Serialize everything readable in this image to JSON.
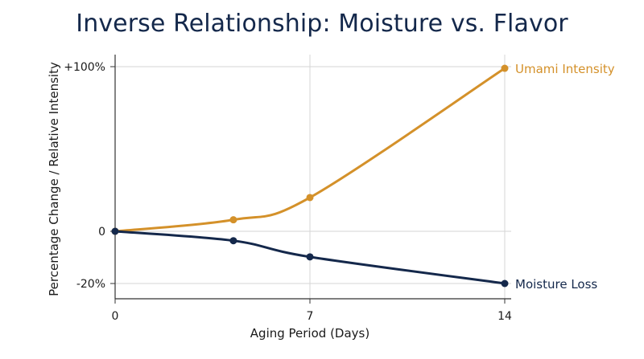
{
  "chart_data": {
    "type": "line",
    "title": "Inverse Relationship: Moisture vs. Flavor",
    "xlabel": "Aging Period (Days)",
    "ylabel": "Percentage Change / Relative Intensity",
    "xlim": [
      0,
      14
    ],
    "ylim": [
      -20,
      100
    ],
    "x_ticks": [
      {
        "value": 0,
        "label": "0"
      },
      {
        "value": 7,
        "label": "7"
      },
      {
        "value": 14,
        "label": "14"
      }
    ],
    "y_ticks": [
      {
        "value": 100,
        "label": "+100%"
      },
      {
        "value": 0,
        "label": "0"
      },
      {
        "value": -20,
        "label": "-20%"
      }
    ],
    "grid": true,
    "legend": "inline labels at line ends",
    "series": [
      {
        "name": "Umami Intensity",
        "color": "#d4912a",
        "points": [
          [
            0,
            0
          ],
          [
            4.25,
            7
          ],
          [
            7,
            20.5
          ],
          [
            14,
            99
          ]
        ]
      },
      {
        "name": "Moisture Loss",
        "color": "#14284b",
        "points": [
          [
            0,
            0
          ],
          [
            4.25,
            -3.6
          ],
          [
            7,
            -9.8
          ],
          [
            14,
            -20
          ]
        ]
      }
    ]
  }
}
